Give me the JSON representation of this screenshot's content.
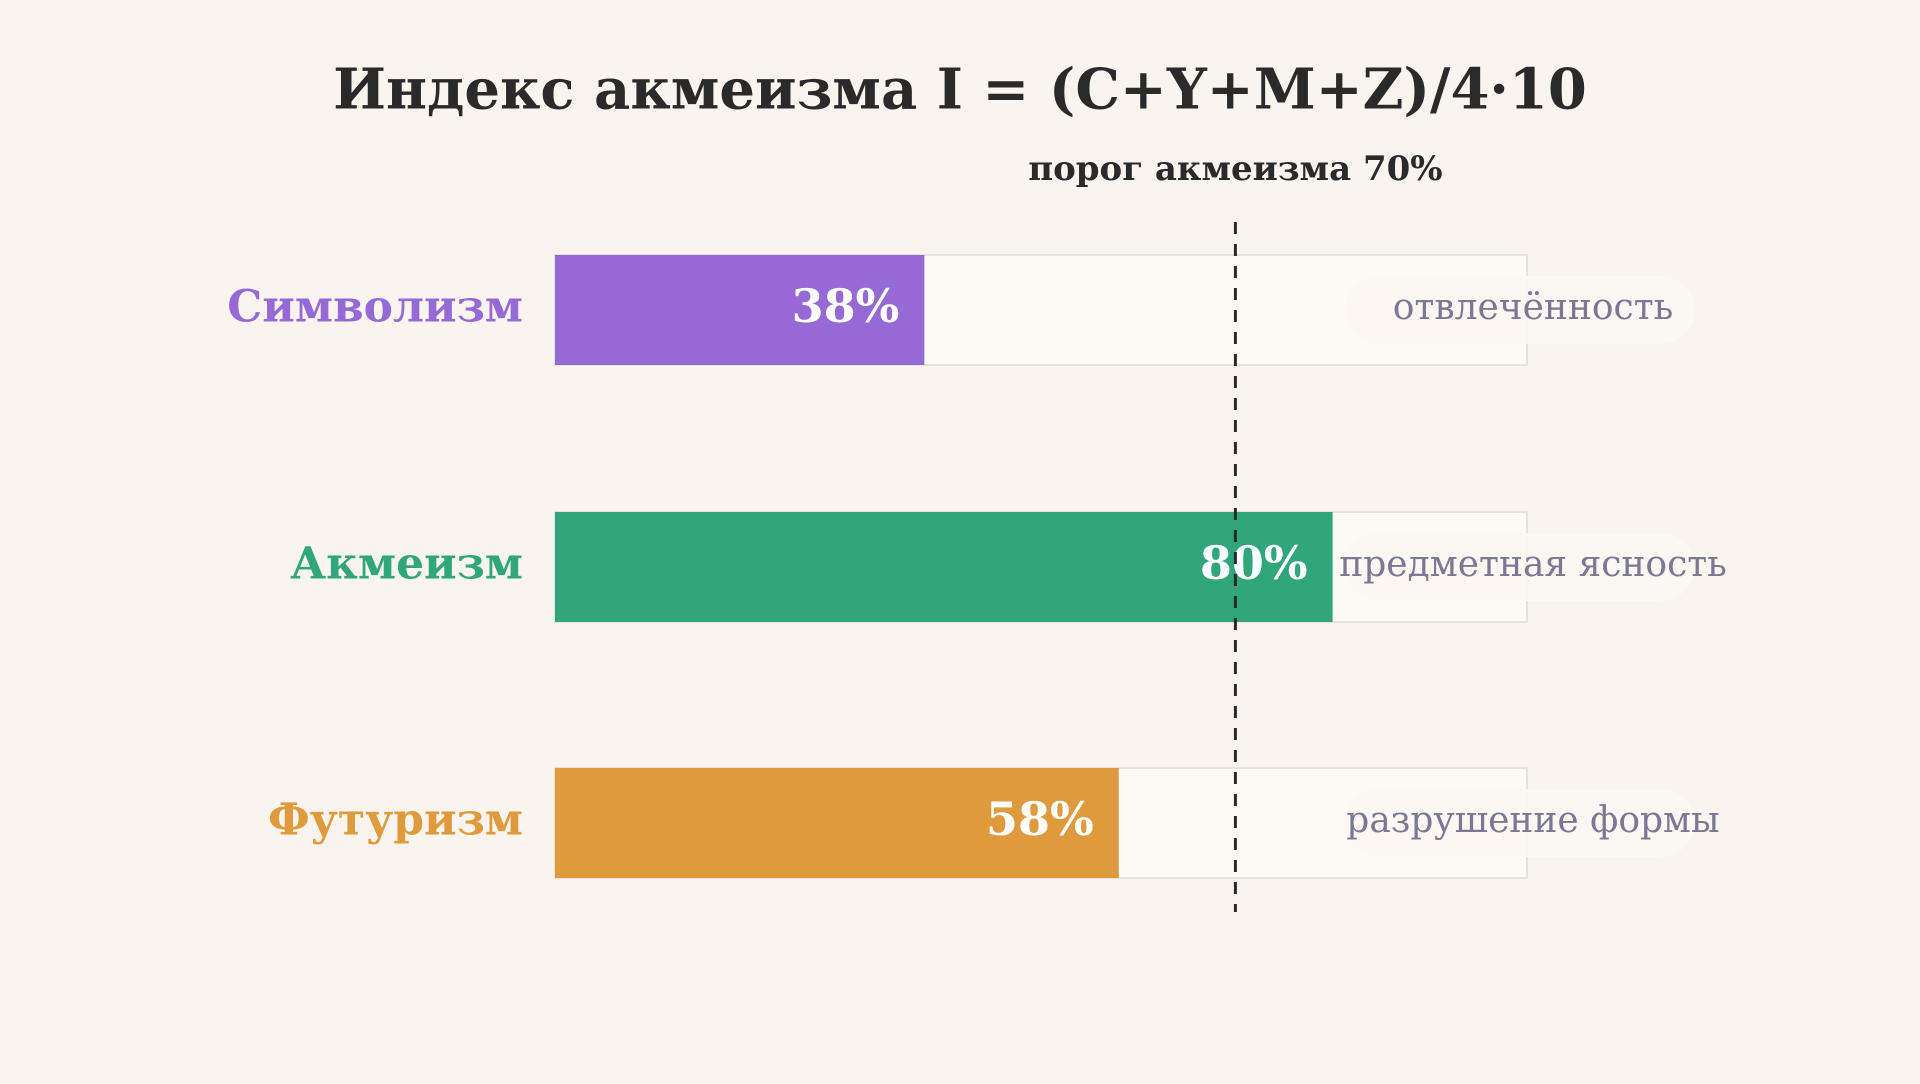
{
  "chart_data": {
    "type": "bar",
    "orientation": "horizontal",
    "title": "Индекс акмеизма I = (C+Y+M+Z)/4·10",
    "categories": [
      "Символизм",
      "Акмеизм",
      "Футуризм"
    ],
    "values": [
      38,
      80,
      58
    ],
    "value_labels": [
      "38%",
      "80%",
      "58%"
    ],
    "colors": [
      "#9569d6",
      "#30a67a",
      "#e09a3e"
    ],
    "annotations": [
      "отвлечённость",
      "предметная ясность",
      "разрушение формы"
    ],
    "xlim": [
      0,
      100
    ],
    "threshold": {
      "value": 70,
      "label": "порог акмеизма 70%"
    }
  }
}
